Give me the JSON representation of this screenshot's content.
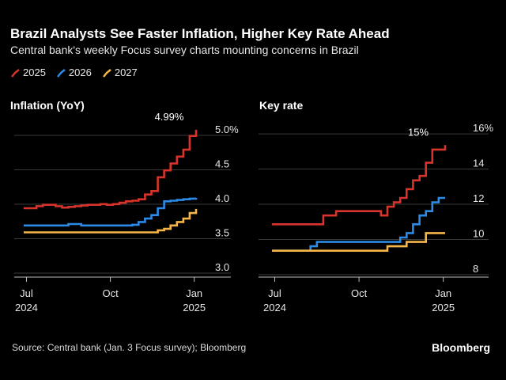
{
  "title": "Brazil Analysts See Faster Inflation, Higher Key Rate Ahead",
  "subtitle": "Central bank's weekly Focus survey charts mounting concerns in Brazil",
  "legend": [
    {
      "label": "2025",
      "color": "#d9342b"
    },
    {
      "label": "2026",
      "color": "#2b8be6"
    },
    {
      "label": "2027",
      "color": "#f5b547"
    }
  ],
  "source": "Source: Central bank (Jan. 3 Focus survey); Bloomberg",
  "brand": "Bloomberg",
  "chart_data": [
    {
      "type": "line",
      "title": "Inflation (YoY)",
      "x_ticks": [
        {
          "date": "2024-07-01",
          "label": [
            "Jul",
            "2024"
          ]
        },
        {
          "date": "2024-10-01",
          "label": [
            "Oct"
          ]
        },
        {
          "date": "2025-01-01",
          "label": [
            "Jan",
            "2025"
          ]
        }
      ],
      "x_range": [
        "2024-06-28",
        "2025-01-03"
      ],
      "y_ticks": [
        "3.0",
        "3.5",
        "4.0",
        "4.5",
        "5.0%"
      ],
      "y_tick_values": [
        3.0,
        3.5,
        4.0,
        4.5,
        5.0
      ],
      "ylim": [
        2.85,
        5.15
      ],
      "annotation": {
        "text": "4.99%",
        "series": "2025",
        "date": "2025-01-03",
        "value": 4.99
      },
      "series": [
        {
          "name": "2025",
          "color": "#d9342b",
          "points": [
            [
              "2024-06-28",
              3.85
            ],
            [
              "2024-07-05",
              3.85
            ],
            [
              "2024-07-12",
              3.88
            ],
            [
              "2024-07-19",
              3.9
            ],
            [
              "2024-07-26",
              3.9
            ],
            [
              "2024-08-02",
              3.88
            ],
            [
              "2024-08-09",
              3.86
            ],
            [
              "2024-08-16",
              3.87
            ],
            [
              "2024-08-23",
              3.88
            ],
            [
              "2024-08-30",
              3.89
            ],
            [
              "2024-09-06",
              3.9
            ],
            [
              "2024-09-13",
              3.9
            ],
            [
              "2024-09-20",
              3.91
            ],
            [
              "2024-09-27",
              3.9
            ],
            [
              "2024-10-04",
              3.91
            ],
            [
              "2024-10-11",
              3.93
            ],
            [
              "2024-10-18",
              3.95
            ],
            [
              "2024-10-25",
              3.96
            ],
            [
              "2024-11-01",
              3.98
            ],
            [
              "2024-11-08",
              4.05
            ],
            [
              "2024-11-15",
              4.1
            ],
            [
              "2024-11-22",
              4.3
            ],
            [
              "2024-11-29",
              4.4
            ],
            [
              "2024-12-06",
              4.5
            ],
            [
              "2024-12-13",
              4.6
            ],
            [
              "2024-12-20",
              4.7
            ],
            [
              "2024-12-27",
              4.9
            ],
            [
              "2025-01-03",
              4.99
            ]
          ]
        },
        {
          "name": "2026",
          "color": "#2b8be6",
          "points": [
            [
              "2024-06-28",
              3.6
            ],
            [
              "2024-07-05",
              3.6
            ],
            [
              "2024-07-12",
              3.6
            ],
            [
              "2024-07-19",
              3.6
            ],
            [
              "2024-07-26",
              3.6
            ],
            [
              "2024-08-02",
              3.6
            ],
            [
              "2024-08-09",
              3.6
            ],
            [
              "2024-08-16",
              3.62
            ],
            [
              "2024-08-23",
              3.62
            ],
            [
              "2024-08-30",
              3.6
            ],
            [
              "2024-09-06",
              3.6
            ],
            [
              "2024-09-13",
              3.6
            ],
            [
              "2024-09-20",
              3.6
            ],
            [
              "2024-09-27",
              3.6
            ],
            [
              "2024-10-04",
              3.6
            ],
            [
              "2024-10-11",
              3.6
            ],
            [
              "2024-10-18",
              3.6
            ],
            [
              "2024-10-25",
              3.61
            ],
            [
              "2024-11-01",
              3.65
            ],
            [
              "2024-11-08",
              3.7
            ],
            [
              "2024-11-15",
              3.75
            ],
            [
              "2024-11-22",
              3.85
            ],
            [
              "2024-11-29",
              3.95
            ],
            [
              "2024-12-06",
              3.96
            ],
            [
              "2024-12-13",
              3.97
            ],
            [
              "2024-12-20",
              3.98
            ],
            [
              "2024-12-27",
              3.99
            ],
            [
              "2025-01-03",
              4.0
            ]
          ]
        },
        {
          "name": "2027",
          "color": "#f5b547",
          "points": [
            [
              "2024-06-28",
              3.5
            ],
            [
              "2024-07-05",
              3.5
            ],
            [
              "2024-07-12",
              3.5
            ],
            [
              "2024-07-19",
              3.5
            ],
            [
              "2024-07-26",
              3.5
            ],
            [
              "2024-08-02",
              3.5
            ],
            [
              "2024-08-09",
              3.5
            ],
            [
              "2024-08-16",
              3.5
            ],
            [
              "2024-08-23",
              3.5
            ],
            [
              "2024-08-30",
              3.5
            ],
            [
              "2024-09-06",
              3.5
            ],
            [
              "2024-09-13",
              3.5
            ],
            [
              "2024-09-20",
              3.5
            ],
            [
              "2024-09-27",
              3.5
            ],
            [
              "2024-10-04",
              3.5
            ],
            [
              "2024-10-11",
              3.5
            ],
            [
              "2024-10-18",
              3.5
            ],
            [
              "2024-10-25",
              3.5
            ],
            [
              "2024-11-01",
              3.5
            ],
            [
              "2024-11-08",
              3.5
            ],
            [
              "2024-11-15",
              3.5
            ],
            [
              "2024-11-22",
              3.53
            ],
            [
              "2024-11-29",
              3.55
            ],
            [
              "2024-12-06",
              3.6
            ],
            [
              "2024-12-13",
              3.65
            ],
            [
              "2024-12-20",
              3.7
            ],
            [
              "2024-12-27",
              3.78
            ],
            [
              "2025-01-03",
              3.84
            ]
          ]
        }
      ]
    },
    {
      "type": "line",
      "title": "Key rate",
      "x_ticks": [
        {
          "date": "2024-07-01",
          "label": [
            "Jul",
            "2024"
          ]
        },
        {
          "date": "2024-10-01",
          "label": [
            "Oct"
          ]
        },
        {
          "date": "2025-01-01",
          "label": [
            "Jan",
            "2025"
          ]
        }
      ],
      "x_range": [
        "2024-06-28",
        "2025-01-03"
      ],
      "y_ticks": [
        "8",
        "10",
        "12",
        "14",
        "16%"
      ],
      "y_tick_values": [
        8,
        10,
        12,
        14,
        16
      ],
      "ylim": [
        7.5,
        16.5
      ],
      "annotation": {
        "text": "15%",
        "series": "2025",
        "date": "2025-01-03",
        "value": 15.0
      },
      "series": [
        {
          "name": "2025",
          "color": "#d9342b",
          "points": [
            [
              "2024-06-28",
              10.5
            ],
            [
              "2024-07-05",
              10.5
            ],
            [
              "2024-07-12",
              10.5
            ],
            [
              "2024-07-19",
              10.5
            ],
            [
              "2024-07-26",
              10.5
            ],
            [
              "2024-08-02",
              10.5
            ],
            [
              "2024-08-09",
              10.5
            ],
            [
              "2024-08-16",
              10.5
            ],
            [
              "2024-08-23",
              11.0
            ],
            [
              "2024-08-30",
              11.0
            ],
            [
              "2024-09-06",
              11.25
            ],
            [
              "2024-09-13",
              11.25
            ],
            [
              "2024-09-20",
              11.25
            ],
            [
              "2024-09-27",
              11.25
            ],
            [
              "2024-10-04",
              11.25
            ],
            [
              "2024-10-11",
              11.25
            ],
            [
              "2024-10-18",
              11.25
            ],
            [
              "2024-10-25",
              11.0
            ],
            [
              "2024-11-01",
              11.5
            ],
            [
              "2024-11-08",
              11.75
            ],
            [
              "2024-11-15",
              12.0
            ],
            [
              "2024-11-22",
              12.5
            ],
            [
              "2024-11-29",
              13.0
            ],
            [
              "2024-12-06",
              13.25
            ],
            [
              "2024-12-13",
              14.0
            ],
            [
              "2024-12-20",
              14.75
            ],
            [
              "2024-12-27",
              14.75
            ],
            [
              "2025-01-03",
              15.0
            ]
          ]
        },
        {
          "name": "2026",
          "color": "#2b8be6",
          "points": [
            [
              "2024-06-28",
              9.0
            ],
            [
              "2024-07-05",
              9.0
            ],
            [
              "2024-07-12",
              9.0
            ],
            [
              "2024-07-19",
              9.0
            ],
            [
              "2024-07-26",
              9.0
            ],
            [
              "2024-08-02",
              9.0
            ],
            [
              "2024-08-09",
              9.25
            ],
            [
              "2024-08-16",
              9.5
            ],
            [
              "2024-08-23",
              9.5
            ],
            [
              "2024-08-30",
              9.5
            ],
            [
              "2024-09-06",
              9.5
            ],
            [
              "2024-09-13",
              9.5
            ],
            [
              "2024-09-20",
              9.5
            ],
            [
              "2024-09-27",
              9.5
            ],
            [
              "2024-10-04",
              9.5
            ],
            [
              "2024-10-11",
              9.5
            ],
            [
              "2024-10-18",
              9.5
            ],
            [
              "2024-10-25",
              9.5
            ],
            [
              "2024-11-01",
              9.5
            ],
            [
              "2024-11-08",
              9.5
            ],
            [
              "2024-11-15",
              9.75
            ],
            [
              "2024-11-22",
              10.0
            ],
            [
              "2024-11-29",
              10.5
            ],
            [
              "2024-12-06",
              11.0
            ],
            [
              "2024-12-13",
              11.25
            ],
            [
              "2024-12-20",
              11.75
            ],
            [
              "2024-12-27",
              12.0
            ],
            [
              "2025-01-03",
              12.0
            ]
          ]
        },
        {
          "name": "2027",
          "color": "#f5b547",
          "points": [
            [
              "2024-06-28",
              9.0
            ],
            [
              "2024-07-05",
              9.0
            ],
            [
              "2024-07-12",
              9.0
            ],
            [
              "2024-07-19",
              9.0
            ],
            [
              "2024-07-26",
              9.0
            ],
            [
              "2024-08-02",
              9.0
            ],
            [
              "2024-08-09",
              9.0
            ],
            [
              "2024-08-16",
              9.0
            ],
            [
              "2024-08-23",
              9.0
            ],
            [
              "2024-08-30",
              9.0
            ],
            [
              "2024-09-06",
              9.0
            ],
            [
              "2024-09-13",
              9.0
            ],
            [
              "2024-09-20",
              9.0
            ],
            [
              "2024-09-27",
              9.0
            ],
            [
              "2024-10-04",
              9.0
            ],
            [
              "2024-10-11",
              9.0
            ],
            [
              "2024-10-18",
              9.0
            ],
            [
              "2024-10-25",
              9.0
            ],
            [
              "2024-11-01",
              9.25
            ],
            [
              "2024-11-08",
              9.25
            ],
            [
              "2024-11-15",
              9.25
            ],
            [
              "2024-11-22",
              9.5
            ],
            [
              "2024-11-29",
              9.5
            ],
            [
              "2024-12-06",
              9.5
            ],
            [
              "2024-12-13",
              10.0
            ],
            [
              "2024-12-20",
              10.0
            ],
            [
              "2024-12-27",
              10.0
            ],
            [
              "2025-01-03",
              10.0
            ]
          ]
        }
      ]
    }
  ]
}
